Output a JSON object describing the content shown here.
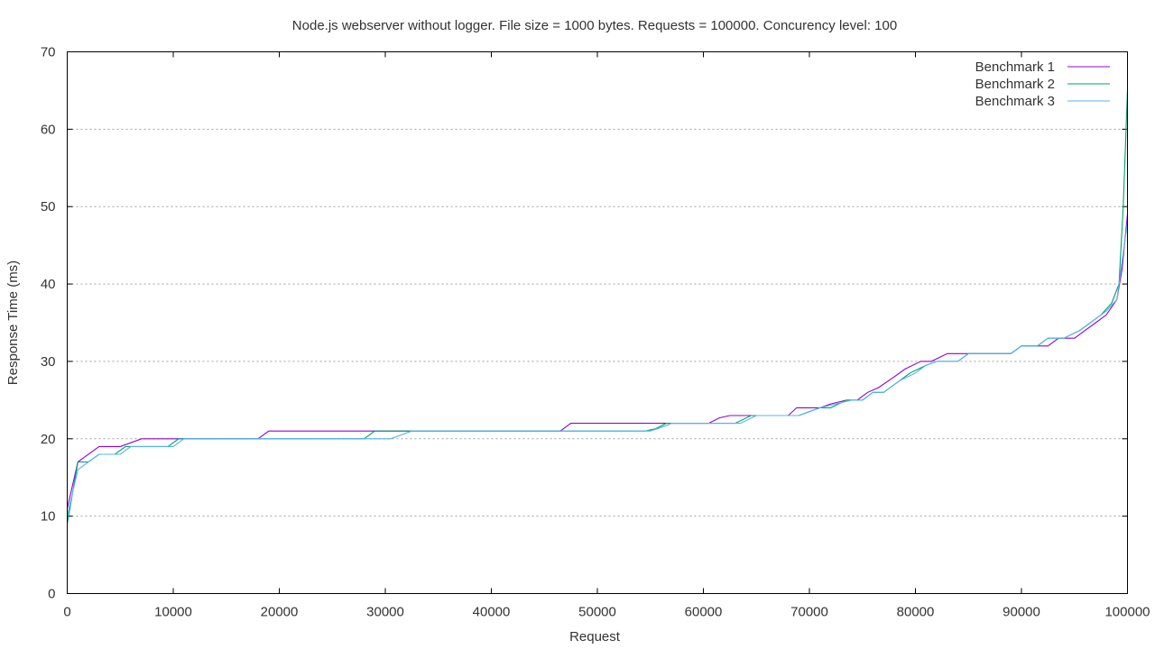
{
  "chart_data": {
    "type": "line",
    "title": "Node.js webserver without logger. File size = 1000 bytes. Requests = 100000. Concurency level: 100",
    "xlabel": "Request",
    "ylabel": "Response Time (ms)",
    "xlim": [
      0,
      100000
    ],
    "ylim": [
      0,
      70
    ],
    "x_ticks": [
      0,
      10000,
      20000,
      30000,
      40000,
      50000,
      60000,
      70000,
      80000,
      90000,
      100000
    ],
    "y_ticks": [
      0,
      10,
      20,
      30,
      40,
      50,
      60,
      70
    ],
    "grid": "horizontal dotted",
    "legend_position": "top-right",
    "series": [
      {
        "name": "Benchmark 1",
        "color": "#9400d3",
        "points": [
          [
            0,
            11
          ],
          [
            1000,
            17
          ],
          [
            3000,
            19
          ],
          [
            5000,
            19
          ],
          [
            7000,
            20
          ],
          [
            10000,
            20
          ],
          [
            11000,
            20
          ],
          [
            18000,
            20
          ],
          [
            19000,
            21
          ],
          [
            29000,
            21
          ],
          [
            30000,
            21
          ],
          [
            46500,
            21
          ],
          [
            47500,
            22
          ],
          [
            55500,
            22
          ],
          [
            56500,
            22
          ],
          [
            60500,
            22
          ],
          [
            61500,
            22.7
          ],
          [
            62500,
            23
          ],
          [
            64500,
            23
          ],
          [
            66500,
            23
          ],
          [
            68000,
            23
          ],
          [
            68800,
            24
          ],
          [
            70000,
            24
          ],
          [
            71000,
            24
          ],
          [
            72000,
            24.5
          ],
          [
            73500,
            25
          ],
          [
            74500,
            25
          ],
          [
            75500,
            26
          ],
          [
            76500,
            26.6
          ],
          [
            78000,
            28
          ],
          [
            79000,
            29
          ],
          [
            80500,
            30
          ],
          [
            81500,
            30
          ],
          [
            83000,
            31
          ],
          [
            85000,
            31
          ],
          [
            89000,
            31
          ],
          [
            90000,
            32
          ],
          [
            91000,
            32
          ],
          [
            92500,
            32
          ],
          [
            93500,
            33
          ],
          [
            95000,
            33
          ],
          [
            96000,
            34
          ],
          [
            97000,
            35
          ],
          [
            98000,
            36
          ],
          [
            99000,
            38
          ],
          [
            99500,
            42
          ],
          [
            100000,
            49
          ]
        ]
      },
      {
        "name": "Benchmark 2",
        "color": "#009e73",
        "points": [
          [
            0,
            9
          ],
          [
            1000,
            17
          ],
          [
            2000,
            17
          ],
          [
            3000,
            18
          ],
          [
            4500,
            18
          ],
          [
            5500,
            19
          ],
          [
            6500,
            19
          ],
          [
            9500,
            19
          ],
          [
            10500,
            20
          ],
          [
            28000,
            20
          ],
          [
            29000,
            21
          ],
          [
            54500,
            21
          ],
          [
            55500,
            21.3
          ],
          [
            56500,
            22
          ],
          [
            60000,
            22
          ],
          [
            63000,
            22
          ],
          [
            64500,
            23
          ],
          [
            66500,
            23
          ],
          [
            68000,
            23
          ],
          [
            69000,
            23
          ],
          [
            70000,
            23.5
          ],
          [
            71000,
            24
          ],
          [
            72000,
            24
          ],
          [
            73500,
            25
          ],
          [
            75000,
            25
          ],
          [
            76000,
            26
          ],
          [
            77000,
            26
          ],
          [
            78000,
            27
          ],
          [
            79500,
            28.5
          ],
          [
            81000,
            29.5
          ],
          [
            82000,
            30
          ],
          [
            84000,
            30
          ],
          [
            85000,
            31
          ],
          [
            89000,
            31
          ],
          [
            90000,
            32
          ],
          [
            91500,
            32
          ],
          [
            92500,
            33
          ],
          [
            94000,
            33
          ],
          [
            95500,
            34
          ],
          [
            96500,
            35
          ],
          [
            97500,
            36
          ],
          [
            98500,
            37.5
          ],
          [
            99200,
            40
          ],
          [
            99600,
            50
          ],
          [
            100000,
            65
          ]
        ]
      },
      {
        "name": "Benchmark 3",
        "color": "#56b4e9",
        "points": [
          [
            0,
            10
          ],
          [
            1000,
            16
          ],
          [
            2000,
            17
          ],
          [
            3000,
            18
          ],
          [
            4000,
            18
          ],
          [
            5000,
            18
          ],
          [
            6000,
            19
          ],
          [
            9000,
            19
          ],
          [
            10000,
            19
          ],
          [
            11000,
            20
          ],
          [
            28500,
            20
          ],
          [
            30500,
            20
          ],
          [
            32500,
            21
          ],
          [
            55000,
            21
          ],
          [
            56500,
            21.7
          ],
          [
            57000,
            22
          ],
          [
            62000,
            22
          ],
          [
            63500,
            22
          ],
          [
            65000,
            23
          ],
          [
            66500,
            23
          ],
          [
            69000,
            23
          ],
          [
            70000,
            23.5
          ],
          [
            71000,
            24
          ],
          [
            72500,
            24.5
          ],
          [
            74000,
            25
          ],
          [
            75000,
            25
          ],
          [
            76000,
            26
          ],
          [
            77000,
            26
          ],
          [
            78500,
            27.5
          ],
          [
            80000,
            28.5
          ],
          [
            81000,
            29.5
          ],
          [
            82000,
            30
          ],
          [
            84000,
            30
          ],
          [
            85000,
            31
          ],
          [
            89000,
            31
          ],
          [
            90000,
            32
          ],
          [
            91500,
            32
          ],
          [
            92500,
            33
          ],
          [
            94000,
            33
          ],
          [
            95500,
            34
          ],
          [
            97000,
            35.5
          ],
          [
            98000,
            36.5
          ],
          [
            99000,
            38
          ],
          [
            99500,
            43
          ],
          [
            100000,
            48
          ]
        ]
      }
    ]
  }
}
